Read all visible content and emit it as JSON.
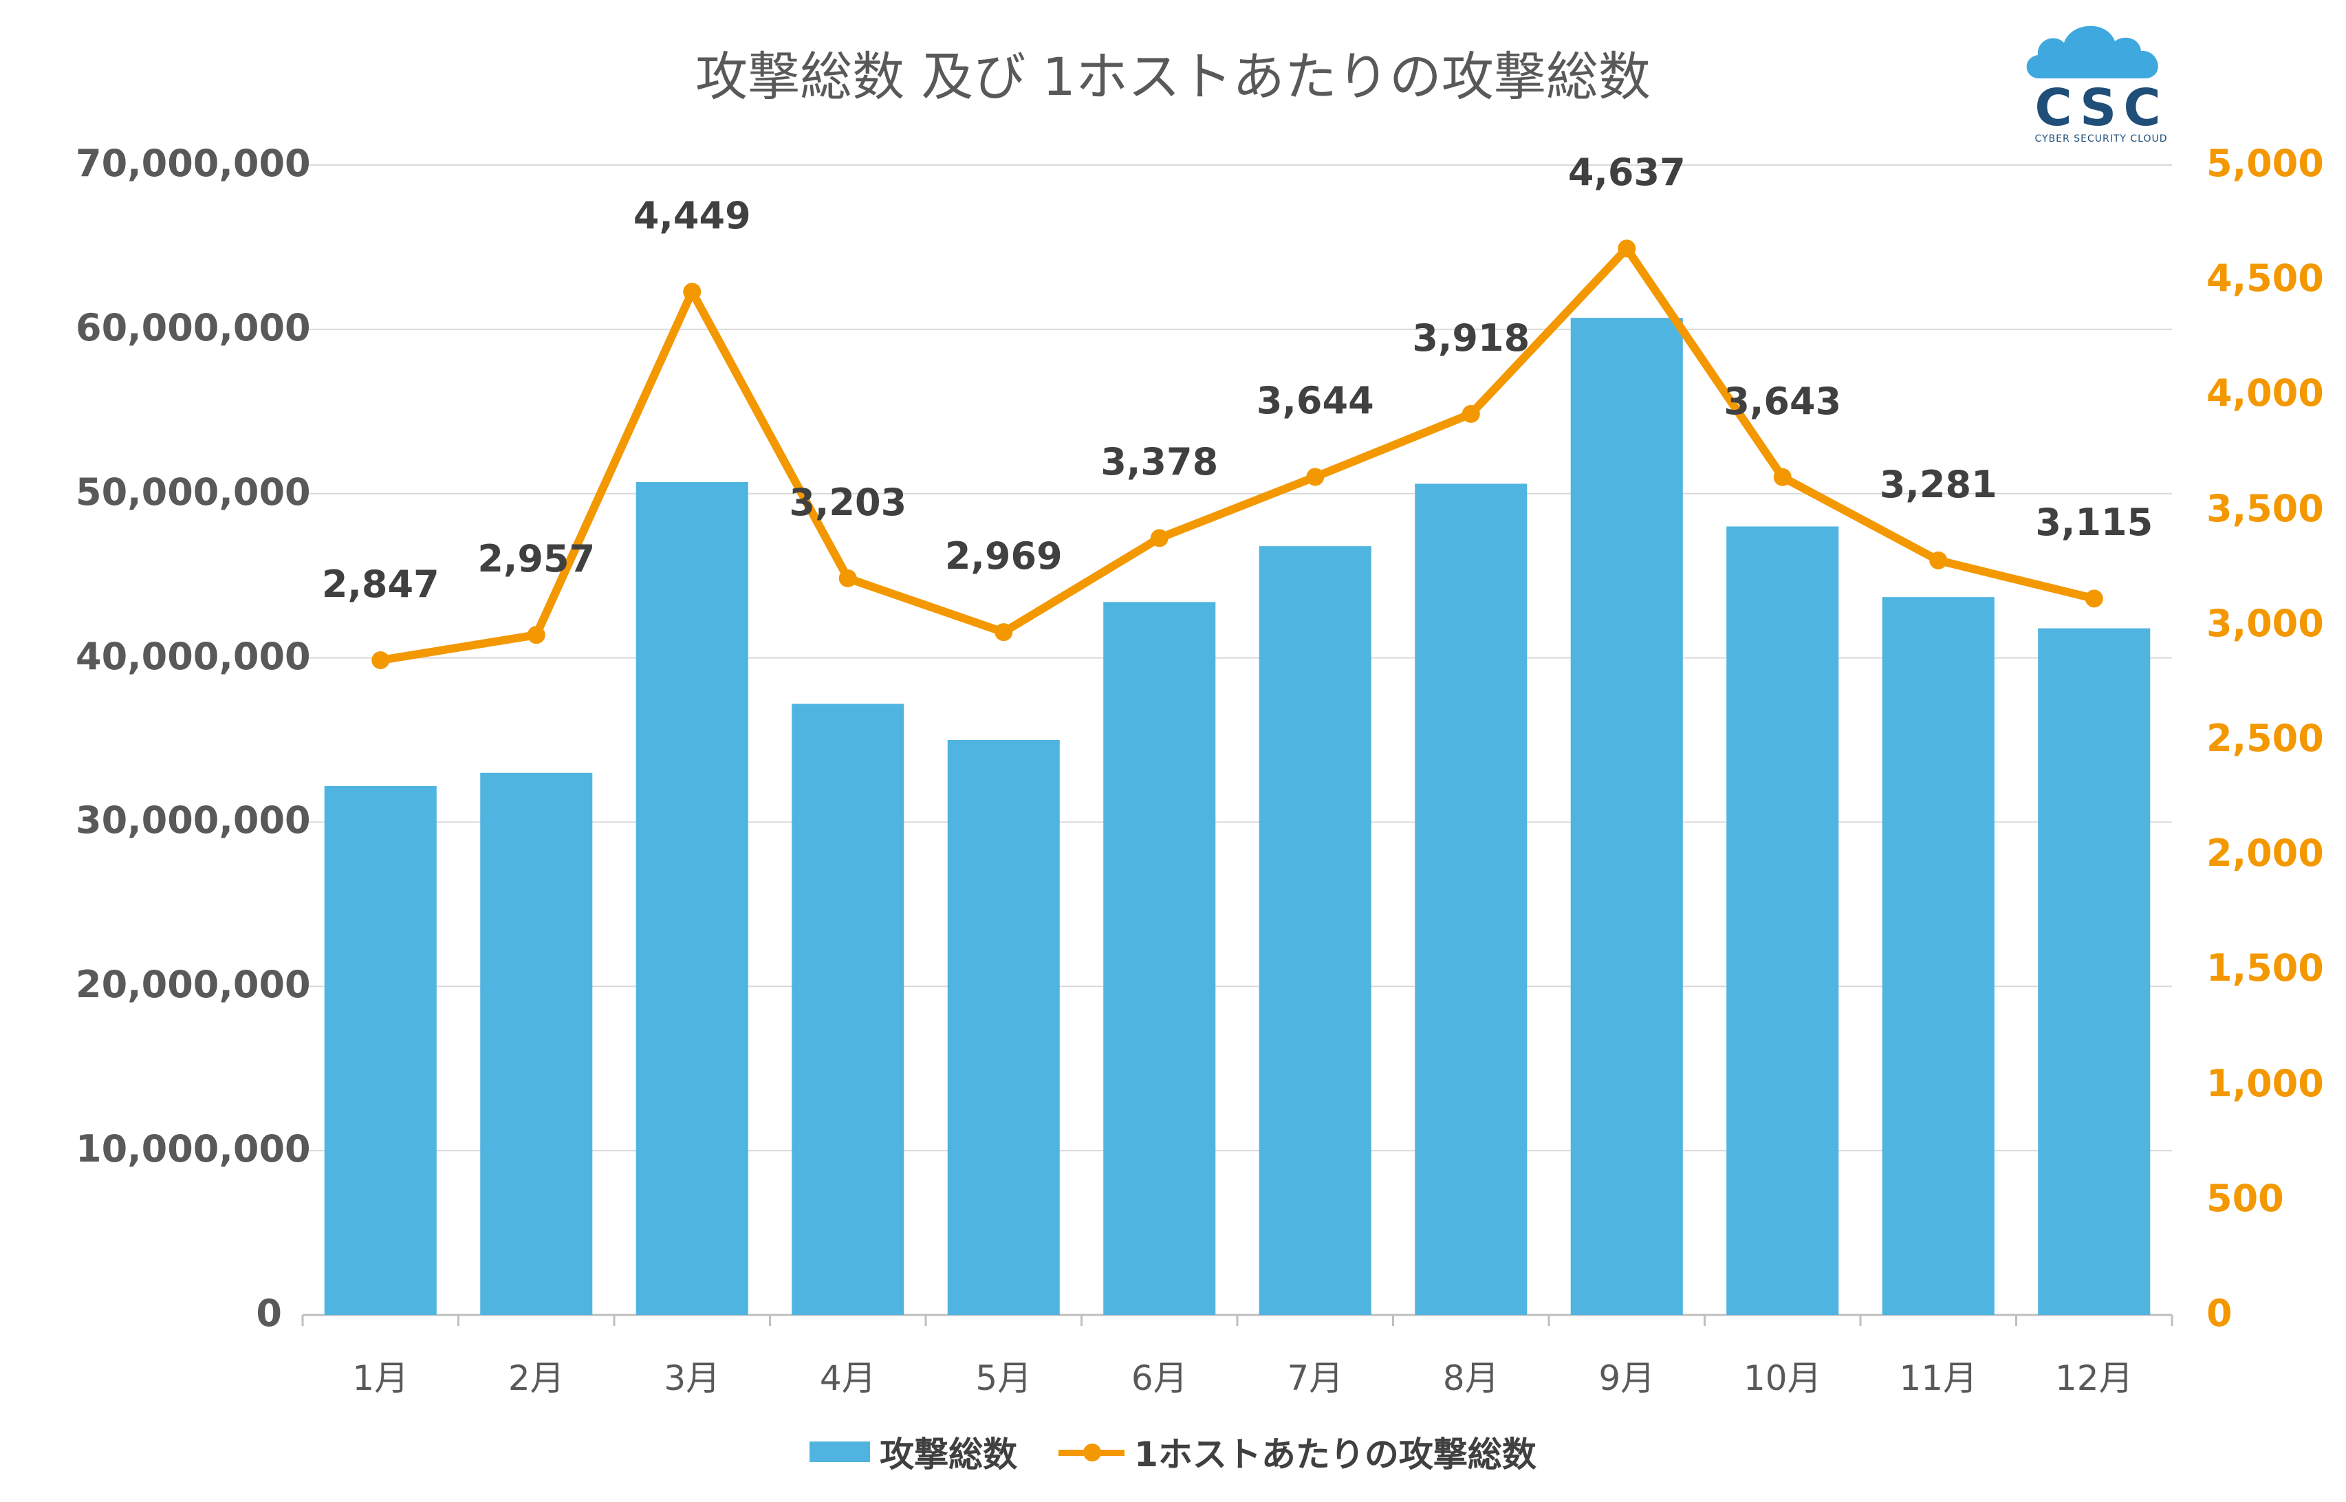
{
  "chart_data": {
    "type": "bar+line",
    "title": "攻撃総数 及び 1ホストあたりの攻撃総数",
    "categories": [
      "1月",
      "2月",
      "3月",
      "4月",
      "5月",
      "6月",
      "7月",
      "8月",
      "9月",
      "10月",
      "11月",
      "12月"
    ],
    "series": [
      {
        "name": "攻撃総数",
        "type": "bar",
        "axis": "left",
        "color": "#50B4E1",
        "values": [
          32200000,
          33000000,
          50700000,
          37200000,
          35000000,
          43400000,
          46800000,
          50600000,
          60700000,
          48000000,
          43700000,
          41800000
        ]
      },
      {
        "name": "1ホストあたりの攻撃総数",
        "type": "line",
        "axis": "right",
        "color": "#F39800",
        "values": [
          2847,
          2957,
          4449,
          3203,
          2969,
          3378,
          3644,
          3918,
          4637,
          3643,
          3281,
          3115
        ],
        "labels": [
          "2,847",
          "2,957",
          "4,449",
          "3,203",
          "2,969",
          "3,378",
          "3,644",
          "3,918",
          "4,637",
          "3,643",
          "3,281",
          "3,115"
        ]
      }
    ],
    "y_left": {
      "min": 0,
      "max": 70000000,
      "ticks": [
        "0",
        "10,000,000",
        "20,000,000",
        "30,000,000",
        "40,000,000",
        "50,000,000",
        "60,000,000",
        "70,000,000"
      ]
    },
    "y_right": {
      "min": 0,
      "max": 5000,
      "ticks": [
        "0",
        "500",
        "1,000",
        "1,500",
        "2,000",
        "2,500",
        "3,000",
        "3,500",
        "4,000",
        "4,500",
        "5,000"
      ]
    },
    "grid": true,
    "legend_position": "bottom"
  },
  "logo": {
    "text": "CSC",
    "subtitle": "CYBER SECURITY CLOUD",
    "cloud_color": "#3FA9DF",
    "text_color": "#1F4E79"
  },
  "colors": {
    "grid": "#D9D9D9",
    "axis_text": "#595959",
    "right_axis_text": "#F39800"
  }
}
